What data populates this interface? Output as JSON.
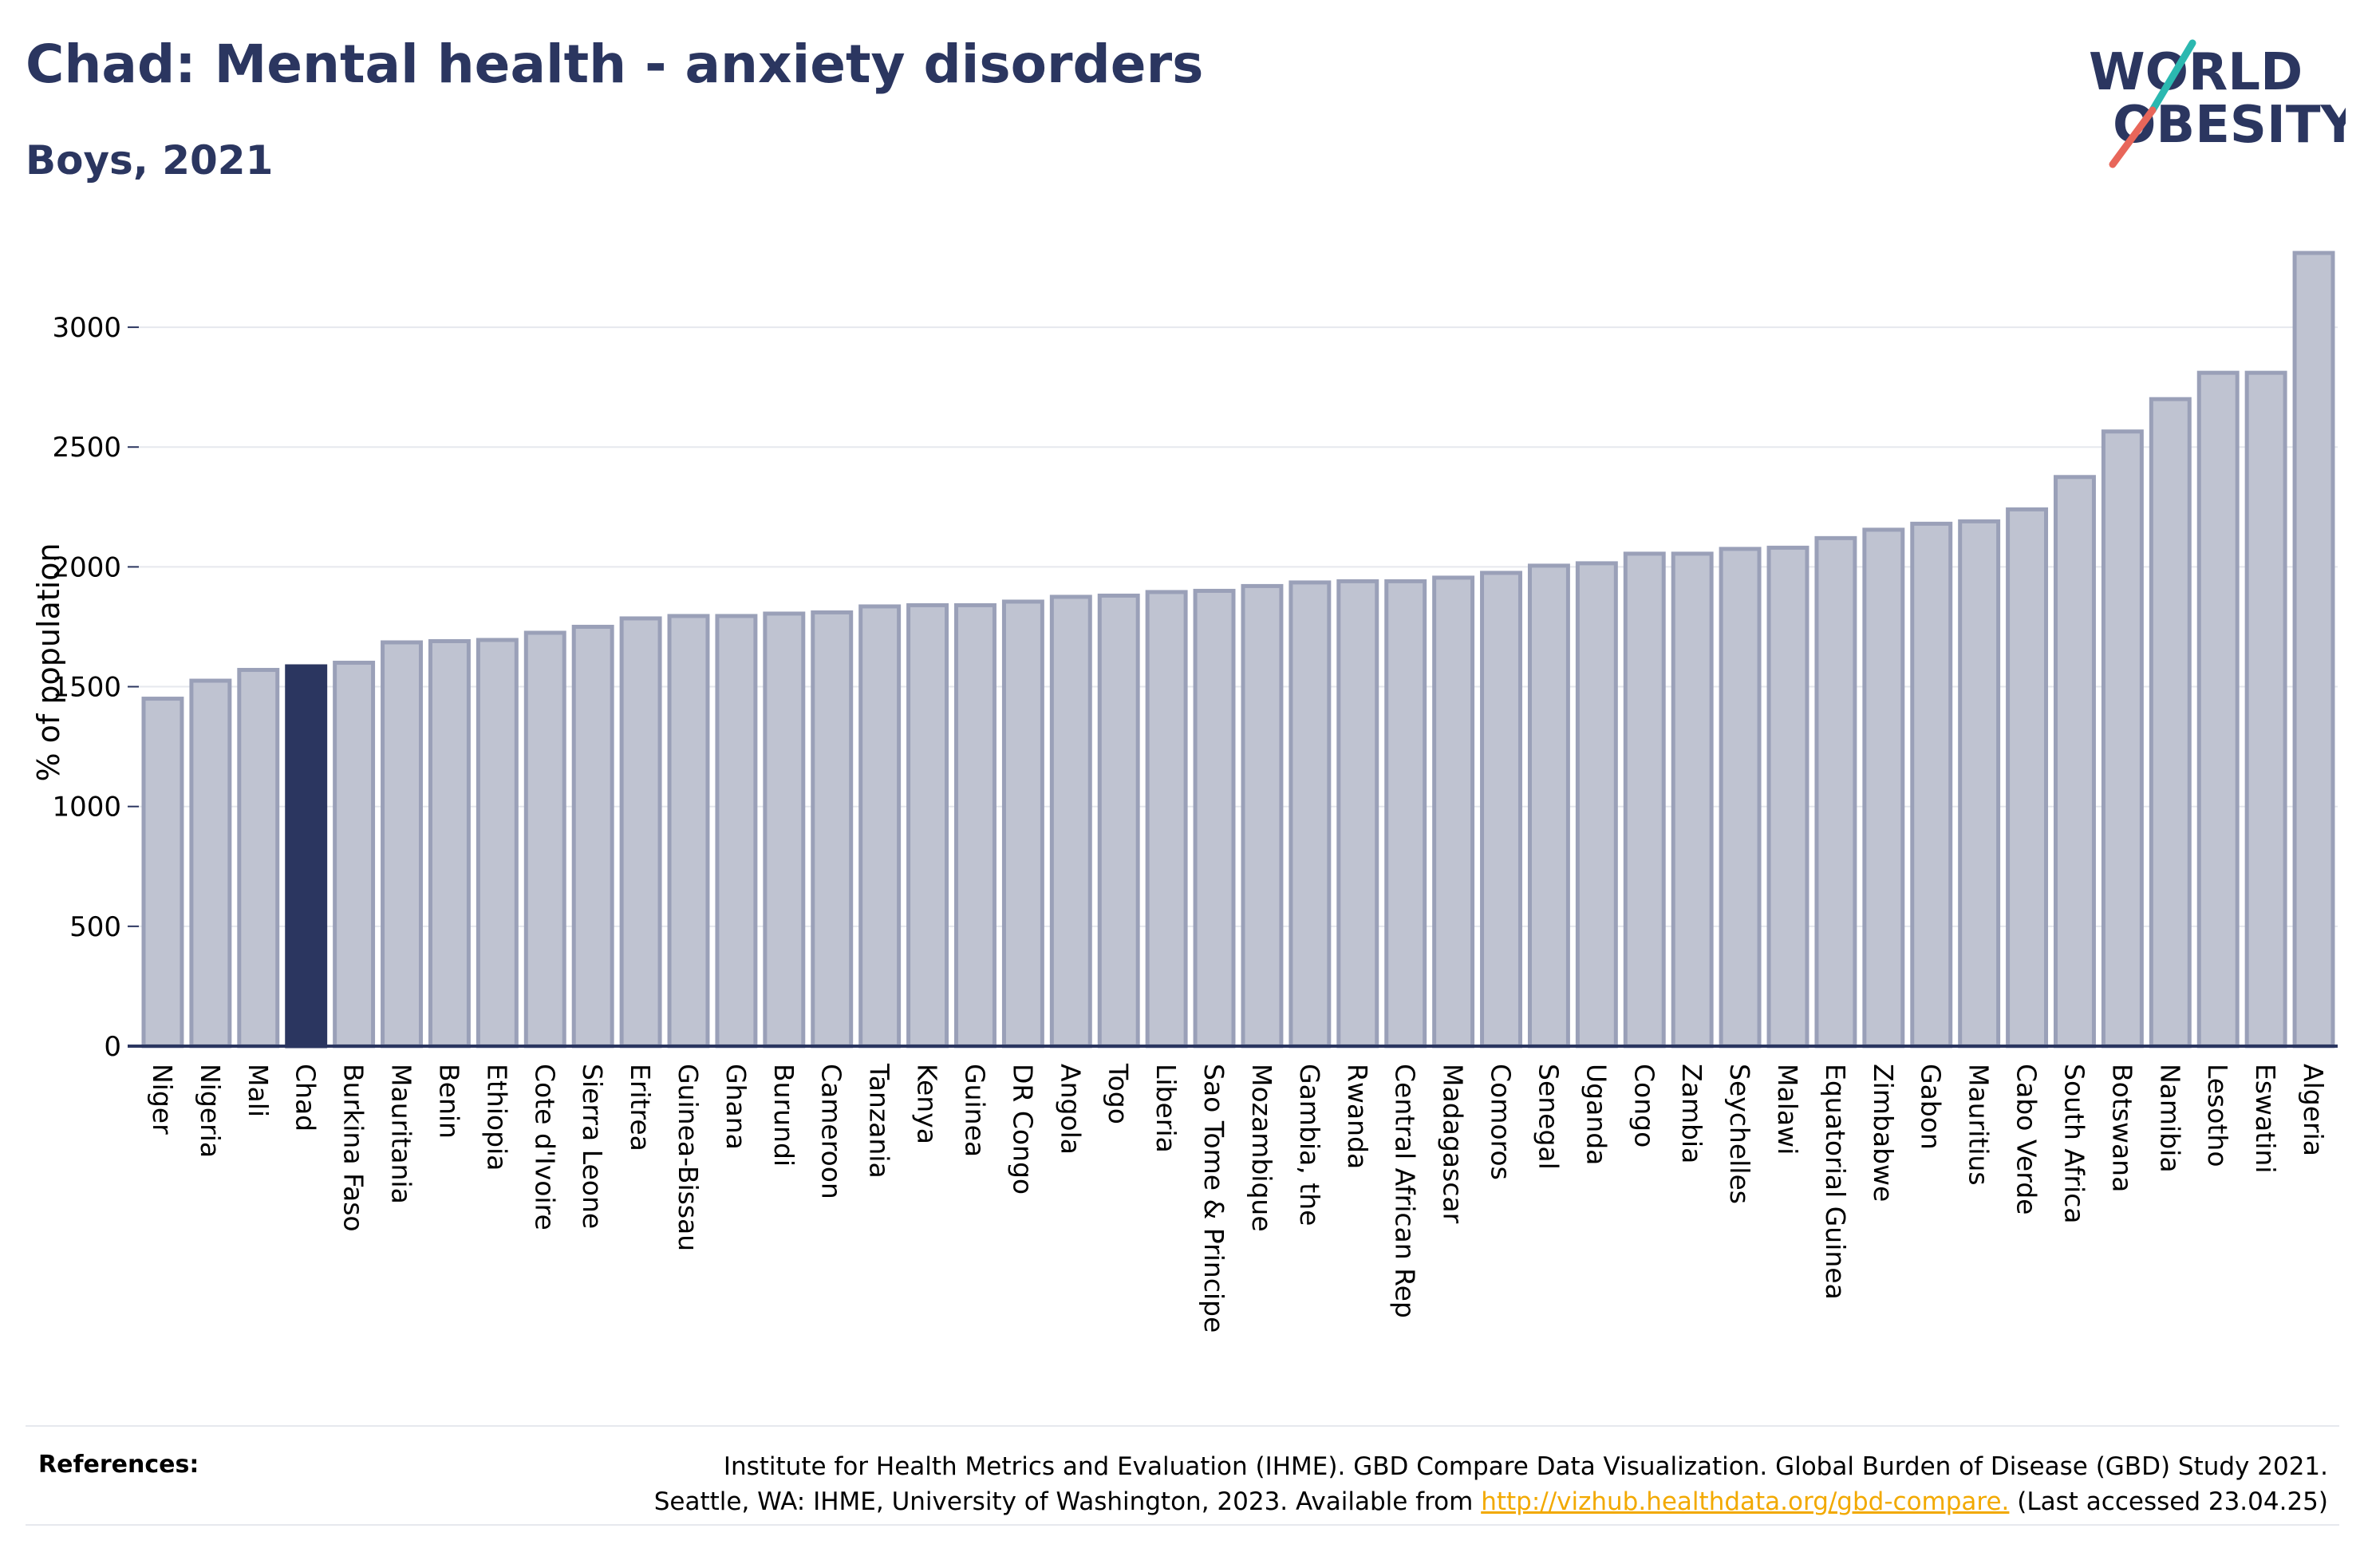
{
  "header": {
    "title": "Chad: Mental health - anxiety disorders",
    "subtitle": "Boys, 2021"
  },
  "logo": {
    "text_line1": "WORLD",
    "text_line2": "OBESITY",
    "colors": {
      "text": "#2b3660",
      "slash_top": "#2bb8b0",
      "slash_bottom": "#e8665a"
    }
  },
  "references": {
    "label": "References:",
    "line1": "Institute for Health Metrics and Evaluation (IHME). GBD Compare Data Visualization. Global Burden of Disease (GBD) Study 2021.",
    "line2_prefix": "Seattle, WA: IHME, University of Washington, 2023. Available from ",
    "link": "http://vizhub.healthdata.org/gbd-compare.",
    "line2_suffix": " (Last accessed 23.04.25)"
  },
  "colors": {
    "bar_fill": "#bfc3d1",
    "bar_stroke": "#9aa0b8",
    "highlight_fill": "#2b3660",
    "axis": "#2b3660",
    "grid": "#e6e8ee",
    "text": "#2b3660"
  },
  "chart_data": {
    "type": "bar",
    "title": "Chad: Mental health - anxiety disorders",
    "subtitle": "Boys, 2021",
    "ylabel": "% of population",
    "xlabel": "",
    "ylim": [
      0,
      3300
    ],
    "yticks": [
      0,
      500,
      1000,
      1500,
      2000,
      2500,
      3000
    ],
    "grid": true,
    "highlight": "Chad",
    "categories": [
      "Niger",
      "Nigeria",
      "Mali",
      "Chad",
      "Burkina Faso",
      "Mauritania",
      "Benin",
      "Ethiopia",
      "Cote d'Ivoire",
      "Sierra Leone",
      "Eritrea",
      "Guinea-Bissau",
      "Ghana",
      "Burundi",
      "Cameroon",
      "Tanzania",
      "Kenya",
      "Guinea",
      "DR Congo",
      "Angola",
      "Togo",
      "Liberia",
      "Sao Tome & Principe",
      "Mozambique",
      "Gambia, the",
      "Rwanda",
      "Central African Rep",
      "Madagascar",
      "Comoros",
      "Senegal",
      "Uganda",
      "Congo",
      "Zambia",
      "Seychelles",
      "Malawi",
      "Equatorial Guinea",
      "Zimbabwe",
      "Gabon",
      "Mauritius",
      "Cabo Verde",
      "South Africa",
      "Botswana",
      "Namibia",
      "Lesotho",
      "Eswatini",
      "Algeria"
    ],
    "values": [
      1450,
      1525,
      1570,
      1585,
      1600,
      1685,
      1690,
      1695,
      1725,
      1750,
      1785,
      1795,
      1795,
      1805,
      1810,
      1835,
      1840,
      1840,
      1855,
      1875,
      1880,
      1895,
      1900,
      1920,
      1935,
      1940,
      1940,
      1955,
      1975,
      2005,
      2015,
      2055,
      2055,
      2075,
      2080,
      2120,
      2155,
      2180,
      2190,
      2240,
      2375,
      2565,
      2700,
      2810,
      2810,
      3310
    ]
  }
}
